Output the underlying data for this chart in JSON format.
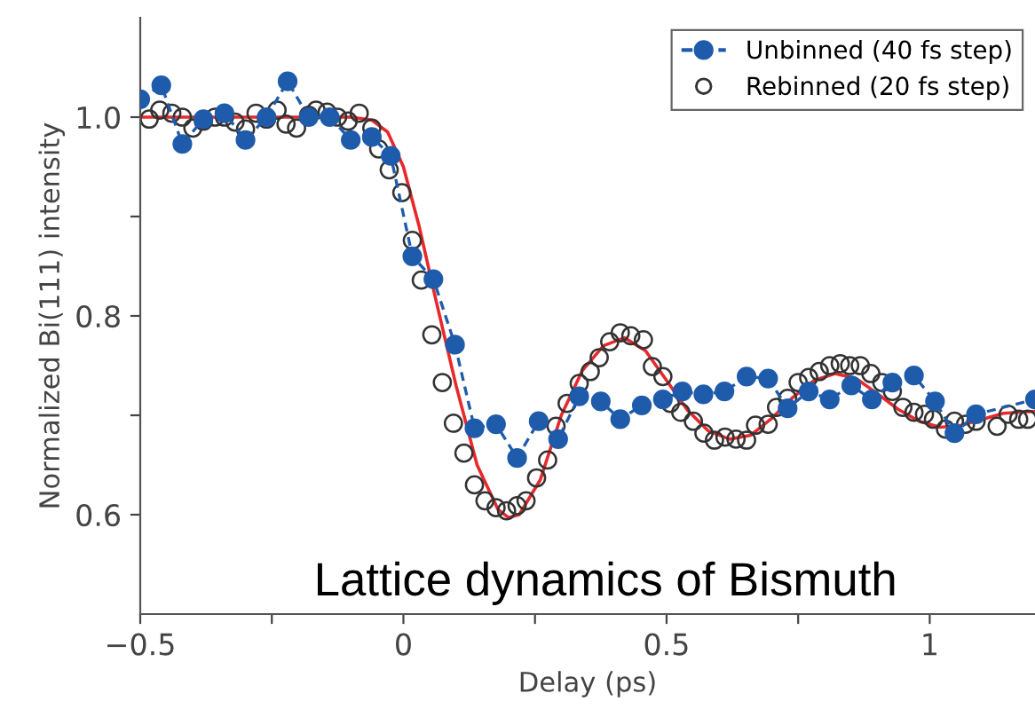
{
  "chart_data": {
    "type": "line",
    "xlabel": "Delay (ps)",
    "ylabel": "Normalized Bi(111) intensity",
    "xlim": [
      -0.5,
      1.2
    ],
    "xticks": [
      {
        "value": -0.5,
        "label": "−0.5"
      },
      {
        "value": -0.25,
        "label": null
      },
      0,
      {
        "value": 0.25,
        "label": null
      },
      0.5,
      {
        "value": 0.75,
        "label": null
      },
      1
    ],
    "ylim": [
      0.5,
      1.1
    ],
    "yticks": [
      0.6,
      {
        "value": 0.7,
        "label": null
      },
      0.8,
      {
        "value": 0.9,
        "label": null
      },
      {
        "value": 1.0,
        "label": "1.0"
      }
    ],
    "grid": false,
    "legend": "top right",
    "annotations": [
      "Lattice dynamics of Bismuth"
    ],
    "series": [
      {
        "name": "Unbinned (40 fs step)",
        "marker": "circle",
        "line_style": "dashed",
        "color": "#1f5bab",
        "x": [
          -0.5,
          -0.46,
          -0.42,
          -0.38,
          -0.34,
          -0.3,
          -0.26,
          -0.22,
          -0.18,
          -0.14,
          -0.1,
          -0.06,
          -0.024,
          0.017,
          0.057,
          0.098,
          0.135,
          0.176,
          0.216,
          0.257,
          0.294,
          0.334,
          0.375,
          0.412,
          0.453,
          0.493,
          0.53,
          0.57,
          0.61,
          0.652,
          0.693,
          0.73,
          0.77,
          0.81,
          0.851,
          0.89,
          0.929,
          0.97,
          1.01,
          1.047,
          1.088,
          1.2
        ],
        "values": [
          1.018,
          1.032,
          0.973,
          0.998,
          1.004,
          0.977,
          1.0,
          1.036,
          1.0,
          1.0,
          0.977,
          0.98,
          0.961,
          0.86,
          0.837,
          0.771,
          0.687,
          0.691,
          0.657,
          0.694,
          0.676,
          0.719,
          0.714,
          0.696,
          0.71,
          0.716,
          0.724,
          0.721,
          0.724,
          0.739,
          0.737,
          0.707,
          0.724,
          0.716,
          0.73,
          0.716,
          0.733,
          0.74,
          0.714,
          0.682,
          0.701,
          0.716
        ]
      },
      {
        "name": "Rebinned (20 fs step)",
        "type": "scatter",
        "marker": "circle",
        "color": "#333333",
        "x": [
          -0.483,
          -0.463,
          -0.44,
          -0.42,
          -0.4,
          -0.38,
          -0.358,
          -0.34,
          -0.32,
          -0.3,
          -0.28,
          -0.26,
          -0.24,
          -0.223,
          -0.203,
          -0.18,
          -0.166,
          -0.145,
          -0.125,
          -0.105,
          -0.084,
          -0.06,
          -0.047,
          -0.027,
          -0.003,
          0.017,
          0.034,
          0.054,
          0.074,
          0.095,
          0.115,
          0.135,
          0.155,
          0.176,
          0.196,
          0.216,
          0.233,
          0.253,
          0.274,
          0.29,
          0.311,
          0.334,
          0.355,
          0.372,
          0.392,
          0.412,
          0.432,
          0.456,
          0.473,
          0.493,
          0.507,
          0.527,
          0.551,
          0.571,
          0.591,
          0.611,
          0.632,
          0.652,
          0.669,
          0.693,
          0.709,
          0.73,
          0.75,
          0.77,
          0.79,
          0.81,
          0.83,
          0.848,
          0.868,
          0.888,
          0.909,
          0.929,
          0.949,
          0.97,
          0.99,
          1.007,
          1.03,
          1.047,
          1.068,
          1.088,
          1.128,
          1.149,
          1.169,
          1.186
        ],
        "values": [
          0.998,
          1.007,
          1.004,
          1.0,
          0.989,
          0.996,
          1.0,
          1.0,
          0.995,
          0.988,
          1.004,
          0.998,
          1.007,
          0.993,
          0.989,
          1.002,
          1.007,
          1.005,
          1.0,
          0.996,
          1.004,
          0.989,
          0.968,
          0.947,
          0.924,
          0.876,
          0.836,
          0.781,
          0.733,
          0.692,
          0.662,
          0.63,
          0.614,
          0.607,
          0.604,
          0.609,
          0.614,
          0.637,
          0.655,
          0.689,
          0.712,
          0.732,
          0.744,
          0.758,
          0.774,
          0.783,
          0.78,
          0.776,
          0.749,
          0.739,
          0.712,
          0.703,
          0.694,
          0.682,
          0.675,
          0.678,
          0.676,
          0.675,
          0.69,
          0.691,
          0.708,
          0.717,
          0.733,
          0.738,
          0.744,
          0.75,
          0.752,
          0.75,
          0.75,
          0.742,
          0.733,
          0.724,
          0.708,
          0.703,
          0.701,
          0.696,
          0.686,
          0.694,
          0.691,
          0.694,
          0.689,
          0.701,
          0.696,
          0.696
        ]
      },
      {
        "marker": "none",
        "line_style": "solid",
        "color": "#e8282b",
        "x": [
          -0.5,
          -0.1,
          -0.06,
          -0.03,
          0,
          0.03,
          0.06,
          0.1,
          0.14,
          0.18,
          0.2,
          0.22,
          0.26,
          0.3,
          0.34,
          0.38,
          0.42,
          0.46,
          0.5,
          0.54,
          0.58,
          0.62,
          0.66,
          0.7,
          0.74,
          0.78,
          0.82,
          0.86,
          0.9,
          0.94,
          0.98,
          1.02,
          1.06,
          1.1,
          1.14,
          1.2
        ],
        "values": [
          1.0,
          1.0,
          0.997,
          0.985,
          0.95,
          0.89,
          0.82,
          0.73,
          0.65,
          0.605,
          0.597,
          0.6,
          0.635,
          0.7,
          0.745,
          0.77,
          0.778,
          0.765,
          0.735,
          0.705,
          0.684,
          0.676,
          0.68,
          0.697,
          0.718,
          0.735,
          0.742,
          0.737,
          0.722,
          0.706,
          0.694,
          0.688,
          0.69,
          0.696,
          0.702,
          0.704
        ]
      }
    ]
  }
}
